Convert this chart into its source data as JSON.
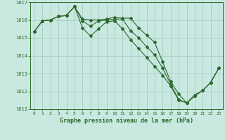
{
  "line1_x": [
    0,
    1,
    2,
    3,
    4,
    5,
    6,
    7,
    8,
    9,
    10,
    11,
    12,
    13,
    14,
    15,
    16,
    17,
    18,
    19,
    20,
    21,
    22,
    23
  ],
  "line1_y": [
    1015.35,
    1015.95,
    1016.0,
    1016.2,
    1016.25,
    1016.75,
    1016.05,
    1016.0,
    1016.0,
    1016.05,
    1016.15,
    1016.1,
    1016.1,
    1015.55,
    1015.15,
    1014.75,
    1013.65,
    1012.55,
    1011.85,
    1011.35,
    1011.75,
    1012.05,
    1012.5,
    1013.3
  ],
  "line2_x": [
    0,
    1,
    2,
    3,
    4,
    5,
    6,
    7,
    8,
    9,
    10,
    11,
    12,
    13,
    14,
    15,
    16,
    17,
    18,
    19,
    20,
    21,
    22,
    23
  ],
  "line2_y": [
    1015.35,
    1015.95,
    1016.0,
    1016.2,
    1016.25,
    1016.75,
    1015.95,
    1015.65,
    1015.95,
    1016.0,
    1016.05,
    1016.05,
    1015.4,
    1015.0,
    1014.5,
    1014.05,
    1013.3,
    1012.4,
    1011.55,
    1011.35,
    1011.8,
    1012.05,
    1012.5,
    1013.3
  ],
  "line3_x": [
    0,
    1,
    2,
    3,
    4,
    5,
    6,
    7,
    8,
    9,
    10,
    11,
    12,
    13,
    14,
    15,
    16,
    17,
    18,
    19,
    20,
    21,
    22,
    23
  ],
  "line3_y": [
    1015.35,
    1015.95,
    1016.0,
    1016.2,
    1016.25,
    1016.75,
    1015.55,
    1015.1,
    1015.5,
    1015.9,
    1015.95,
    1015.5,
    1014.9,
    1014.4,
    1013.9,
    1013.4,
    1012.9,
    1012.3,
    1011.5,
    1011.35,
    1011.75,
    1012.05,
    1012.5,
    1013.3
  ],
  "line_color": "#2d6a2d",
  "bg_color": "#c8e8e0",
  "grid_color": "#a0c8c0",
  "xlabel": "Graphe pression niveau de la mer (hPa)",
  "ylim": [
    1011,
    1017
  ],
  "xlim": [
    -0.5,
    23.5
  ],
  "yticks": [
    1011,
    1012,
    1013,
    1014,
    1015,
    1016,
    1017
  ],
  "xticks": [
    0,
    1,
    2,
    3,
    4,
    5,
    6,
    7,
    8,
    9,
    10,
    11,
    12,
    13,
    14,
    15,
    16,
    17,
    18,
    19,
    20,
    21,
    22,
    23
  ]
}
